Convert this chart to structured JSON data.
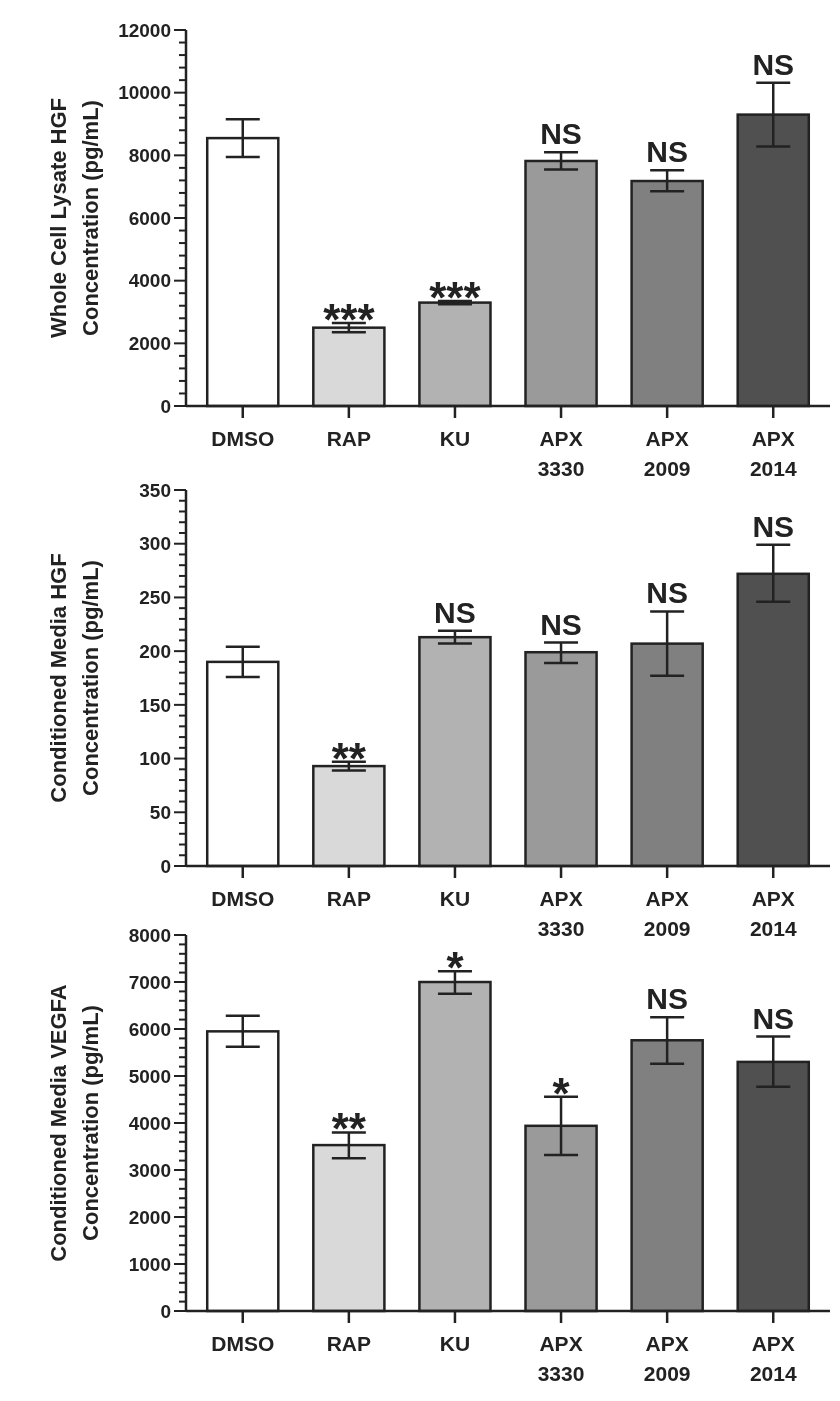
{
  "chart_data": [
    {
      "type": "bar",
      "ylabel": "Whole Cell Lysate HGF Concentration (pg/mL)",
      "categories": [
        "DMSO",
        "RAP",
        "KU",
        "APX 3330",
        "APX 2009",
        "APX 2014"
      ],
      "colors": [
        "#ffffff",
        "#d9d9d9",
        "#b2b2b2",
        "#9a9a9a",
        "#808080",
        "#505050"
      ],
      "values": [
        8550,
        2500,
        3300,
        7820,
        7180,
        9300
      ],
      "errors": [
        [
          7950,
          9150
        ],
        [
          2350,
          2650
        ],
        [
          3250,
          3350
        ],
        [
          7550,
          8100
        ],
        [
          6850,
          7520
        ],
        [
          8280,
          10320
        ]
      ],
      "ylim": [
        0,
        12000
      ],
      "yticks": [
        0,
        {
          "value": 400,
          "label": null
        },
        {
          "value": 800,
          "label": null
        },
        {
          "value": 1200,
          "label": null
        },
        {
          "value": 1600,
          "label": null
        },
        2000,
        {
          "value": 2400,
          "label": null
        },
        {
          "value": 2800,
          "label": null
        },
        {
          "value": 3200,
          "label": null
        },
        {
          "value": 3600,
          "label": null
        },
        4000,
        {
          "value": 4400,
          "label": null
        },
        {
          "value": 4800,
          "label": null
        },
        {
          "value": 5200,
          "label": null
        },
        {
          "value": 5600,
          "label": null
        },
        6000,
        {
          "value": 6400,
          "label": null
        },
        {
          "value": 6800,
          "label": null
        },
        {
          "value": 7200,
          "label": null
        },
        {
          "value": 7600,
          "label": null
        },
        8000,
        {
          "value": 8400,
          "label": null
        },
        {
          "value": 8800,
          "label": null
        },
        {
          "value": 9200,
          "label": null
        },
        {
          "value": 9600,
          "label": null
        },
        10000,
        {
          "value": 10400,
          "label": null
        },
        {
          "value": 10800,
          "label": null
        },
        {
          "value": 11200,
          "label": null
        },
        {
          "value": 11600,
          "label": null
        },
        12000
      ],
      "annotations": [
        {
          "text": "***",
          "x": "RAP",
          "y": 2650
        },
        {
          "text": "***",
          "x": "KU",
          "y": 3350
        },
        {
          "text": "NS",
          "x": "APX 3330",
          "y": 8100
        },
        {
          "text": "NS",
          "x": "APX 2009",
          "y": 7520
        },
        {
          "text": "NS",
          "x": "APX 2014",
          "y": 10320
        }
      ]
    },
    {
      "type": "bar",
      "ylabel": "Conditioned Media HGF Concentration (pg/mL)",
      "categories": [
        "DMSO",
        "RAP",
        "KU",
        "APX 3330",
        "APX 2009",
        "APX 2014"
      ],
      "colors": [
        "#ffffff",
        "#d9d9d9",
        "#b2b2b2",
        "#9a9a9a",
        "#808080",
        "#505050"
      ],
      "values": [
        190,
        93,
        213,
        199,
        207,
        272
      ],
      "errors": [
        [
          176,
          204
        ],
        [
          89,
          97
        ],
        [
          207,
          219
        ],
        [
          189,
          208
        ],
        [
          177,
          237
        ],
        [
          246,
          299
        ]
      ],
      "ylim": [
        0,
        350
      ],
      "yticks": [
        0,
        {
          "value": 10,
          "label": null
        },
        {
          "value": 20,
          "label": null
        },
        {
          "value": 30,
          "label": null
        },
        {
          "value": 40,
          "label": null
        },
        50,
        {
          "value": 60,
          "label": null
        },
        {
          "value": 70,
          "label": null
        },
        {
          "value": 80,
          "label": null
        },
        {
          "value": 90,
          "label": null
        },
        100,
        {
          "value": 110,
          "label": null
        },
        {
          "value": 120,
          "label": null
        },
        {
          "value": 130,
          "label": null
        },
        {
          "value": 140,
          "label": null
        },
        150,
        {
          "value": 160,
          "label": null
        },
        {
          "value": 170,
          "label": null
        },
        {
          "value": 180,
          "label": null
        },
        {
          "value": 190,
          "label": null
        },
        200,
        {
          "value": 210,
          "label": null
        },
        {
          "value": 220,
          "label": null
        },
        {
          "value": 230,
          "label": null
        },
        {
          "value": 240,
          "label": null
        },
        250,
        {
          "value": 260,
          "label": null
        },
        {
          "value": 270,
          "label": null
        },
        {
          "value": 280,
          "label": null
        },
        {
          "value": 290,
          "label": null
        },
        300,
        {
          "value": 310,
          "label": null
        },
        {
          "value": 320,
          "label": null
        },
        {
          "value": 330,
          "label": null
        },
        {
          "value": 340,
          "label": null
        },
        350
      ],
      "annotations": [
        {
          "text": "**",
          "x": "RAP",
          "y": 97
        },
        {
          "text": "NS",
          "x": "KU",
          "y": 219
        },
        {
          "text": "NS",
          "x": "APX 3330",
          "y": 208
        },
        {
          "text": "NS",
          "x": "APX 2009",
          "y": 237
        },
        {
          "text": "NS",
          "x": "APX 2014",
          "y": 299
        }
      ]
    },
    {
      "type": "bar",
      "ylabel": "Conditioned Media VEGFA Concentration (pg/mL)",
      "categories": [
        "DMSO",
        "RAP",
        "KU",
        "APX 3330",
        "APX 2009",
        "APX 2014"
      ],
      "colors": [
        "#ffffff",
        "#d9d9d9",
        "#b2b2b2",
        "#9a9a9a",
        "#808080",
        "#505050"
      ],
      "values": [
        5950,
        3530,
        7000,
        3940,
        5760,
        5300
      ],
      "errors": [
        [
          5620,
          6280
        ],
        [
          3250,
          3800
        ],
        [
          6750,
          7230
        ],
        [
          3320,
          4560
        ],
        [
          5260,
          6250
        ],
        [
          4770,
          5840
        ]
      ],
      "ylim": [
        0,
        8000
      ],
      "yticks": [
        0,
        {
          "value": 200,
          "label": null
        },
        {
          "value": 400,
          "label": null
        },
        {
          "value": 600,
          "label": null
        },
        {
          "value": 800,
          "label": null
        },
        1000,
        {
          "value": 1200,
          "label": null
        },
        {
          "value": 1400,
          "label": null
        },
        {
          "value": 1600,
          "label": null
        },
        {
          "value": 1800,
          "label": null
        },
        2000,
        {
          "value": 2200,
          "label": null
        },
        {
          "value": 2400,
          "label": null
        },
        {
          "value": 2600,
          "label": null
        },
        {
          "value": 2800,
          "label": null
        },
        3000,
        {
          "value": 3200,
          "label": null
        },
        {
          "value": 3400,
          "label": null
        },
        {
          "value": 3600,
          "label": null
        },
        {
          "value": 3800,
          "label": null
        },
        4000,
        {
          "value": 4200,
          "label": null
        },
        {
          "value": 4400,
          "label": null
        },
        {
          "value": 4600,
          "label": null
        },
        {
          "value": 4800,
          "label": null
        },
        5000,
        {
          "value": 5200,
          "label": null
        },
        {
          "value": 5400,
          "label": null
        },
        {
          "value": 5600,
          "label": null
        },
        {
          "value": 5800,
          "label": null
        },
        6000,
        {
          "value": 6200,
          "label": null
        },
        {
          "value": 6400,
          "label": null
        },
        {
          "value": 6600,
          "label": null
        },
        {
          "value": 6800,
          "label": null
        },
        7000,
        {
          "value": 7200,
          "label": null
        },
        {
          "value": 7400,
          "label": null
        },
        {
          "value": 7600,
          "label": null
        },
        {
          "value": 7800,
          "label": null
        },
        8000
      ],
      "annotations": [
        {
          "text": "**",
          "x": "RAP",
          "y": 3800
        },
        {
          "text": "*",
          "x": "KU",
          "y": 7230
        },
        {
          "text": "*",
          "x": "APX 3330",
          "y": 4560
        },
        {
          "text": "NS",
          "x": "APX 2009",
          "y": 6250
        },
        {
          "text": "NS",
          "x": "APX 2014",
          "y": 5840
        }
      ]
    }
  ]
}
